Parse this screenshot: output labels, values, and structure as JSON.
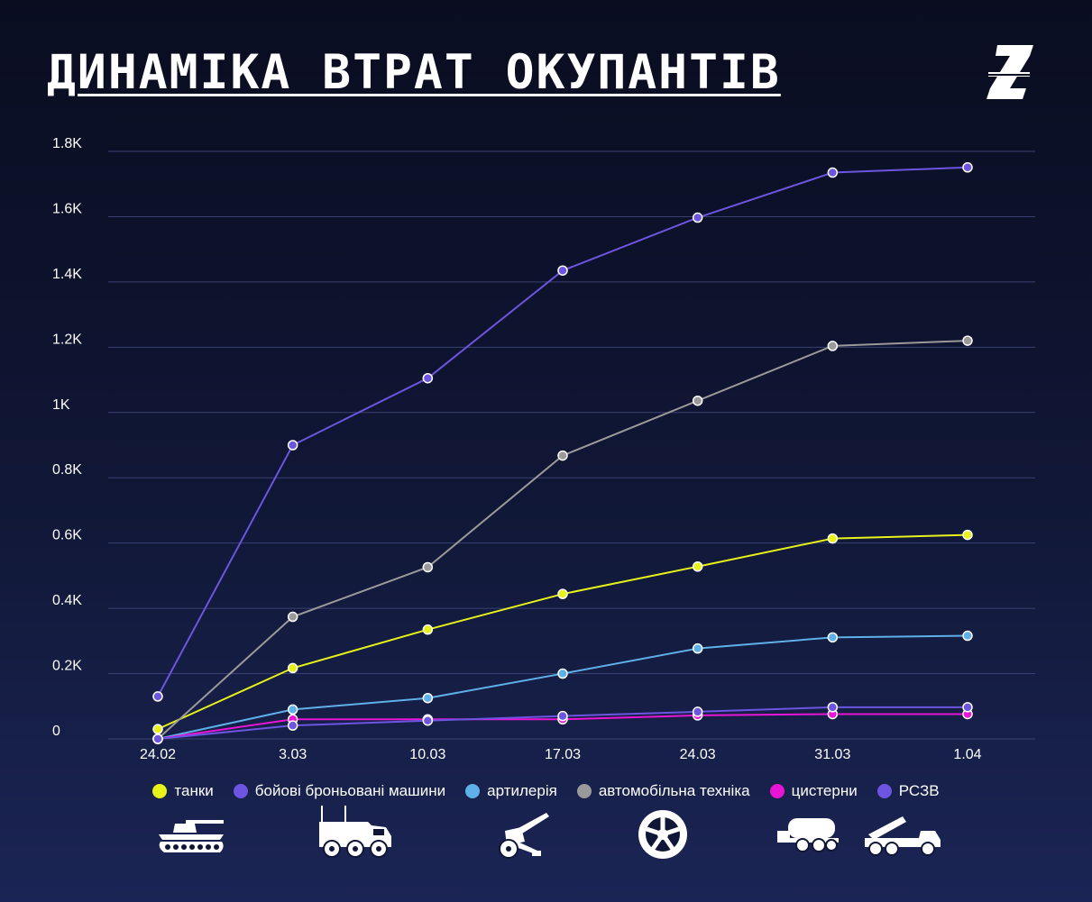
{
  "header": {
    "title": "ДИНАМІКА ВТРАТ ОКУПАНТІВ",
    "logo_icon": "z-logo-icon"
  },
  "chart_data": {
    "type": "line",
    "title": "ДИНАМІКА ВТРАТ ОКУПАНТІВ",
    "xlabel": "",
    "ylabel": "",
    "categories": [
      "24.02",
      "3.03",
      "10.03",
      "17.03",
      "24.03",
      "31.03",
      "1.04"
    ],
    "ylim": [
      0,
      1800
    ],
    "yticks": [
      0,
      200,
      400,
      600,
      800,
      1000,
      1200,
      1400,
      1600,
      1800
    ],
    "ytick_labels": [
      "0",
      "0.2K",
      "0.4K",
      "0.6K",
      "0.8K",
      "1K",
      "1.2K",
      "1.4K",
      "1.6K",
      "1.8K"
    ],
    "grid": true,
    "legend_position": "bottom",
    "series": [
      {
        "name": "танки",
        "color": "#e6f21a",
        "values": [
          30,
          217,
          335,
          444,
          528,
          614,
          625
        ]
      },
      {
        "name": "бойові броньовані машини",
        "color": "#6c55e0",
        "values": [
          130,
          900,
          1105,
          1435,
          1597,
          1735,
          1751
        ]
      },
      {
        "name": "артилерія",
        "color": "#5fb0e8",
        "values": [
          0,
          90,
          125,
          200,
          277,
          311,
          316
        ]
      },
      {
        "name": "автомобільна техніка",
        "color": "#9a9a9a",
        "values": [
          0,
          374,
          526,
          868,
          1036,
          1204,
          1220
        ]
      },
      {
        "name": "цистерни",
        "color": "#e815d4",
        "values": [
          0,
          60,
          60,
          60,
          72,
          76,
          76
        ]
      },
      {
        "name": "РСЗВ",
        "color": "#6c55e0",
        "values": [
          0,
          41,
          56,
          70,
          83,
          97,
          97
        ]
      }
    ]
  },
  "icons": [
    "tank-icon",
    "armored-vehicle-icon",
    "artillery-icon",
    "wheel-icon",
    "tanker-truck-icon",
    "rocket-launcher-icon"
  ]
}
